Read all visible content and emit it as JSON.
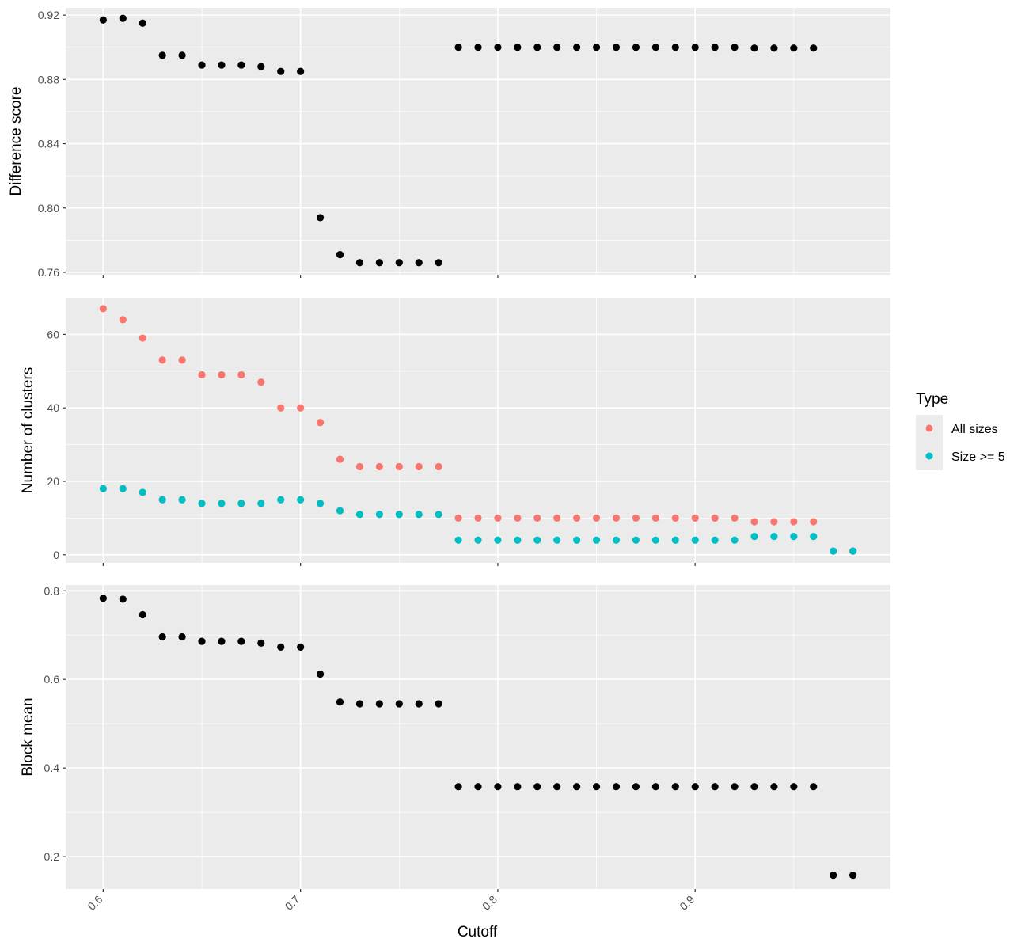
{
  "chart_data": [
    {
      "type": "scatter",
      "title": "",
      "ylabel": "Difference score",
      "xlim": [
        0.581,
        0.999
      ],
      "ylim": [
        0.7585,
        0.9245
      ],
      "yticks": [
        0.76,
        0.8,
        0.84,
        0.88,
        0.92
      ],
      "ytick_labels": [
        "0.76",
        "0.80",
        "0.84",
        "0.88",
        "0.92"
      ],
      "xticks": [
        0.6,
        0.7,
        0.8,
        0.9
      ],
      "grid": true,
      "series": [
        {
          "color": "#000000",
          "points": [
            [
              0.6,
              0.917
            ],
            [
              0.61,
              0.918
            ],
            [
              0.62,
              0.915
            ],
            [
              0.63,
              0.895
            ],
            [
              0.64,
              0.895
            ],
            [
              0.65,
              0.889
            ],
            [
              0.66,
              0.889
            ],
            [
              0.67,
              0.889
            ],
            [
              0.68,
              0.888
            ],
            [
              0.69,
              0.885
            ],
            [
              0.7,
              0.885
            ],
            [
              0.71,
              0.794
            ],
            [
              0.72,
              0.771
            ],
            [
              0.73,
              0.766
            ],
            [
              0.74,
              0.766
            ],
            [
              0.75,
              0.766
            ],
            [
              0.76,
              0.766
            ],
            [
              0.77,
              0.766
            ],
            [
              0.78,
              0.9
            ],
            [
              0.79,
              0.9
            ],
            [
              0.8,
              0.9
            ],
            [
              0.81,
              0.9
            ],
            [
              0.82,
              0.9
            ],
            [
              0.83,
              0.9
            ],
            [
              0.84,
              0.9
            ],
            [
              0.85,
              0.9
            ],
            [
              0.86,
              0.9
            ],
            [
              0.87,
              0.9
            ],
            [
              0.88,
              0.9
            ],
            [
              0.89,
              0.9
            ],
            [
              0.9,
              0.9
            ],
            [
              0.91,
              0.9
            ],
            [
              0.92,
              0.9
            ],
            [
              0.93,
              0.8995
            ],
            [
              0.94,
              0.8995
            ],
            [
              0.95,
              0.8995
            ],
            [
              0.96,
              0.8995
            ]
          ]
        }
      ]
    },
    {
      "type": "scatter",
      "title": "",
      "ylabel": "Number of clusters",
      "xlim": [
        0.581,
        0.999
      ],
      "ylim": [
        -2.2,
        70.0
      ],
      "yticks": [
        0,
        20,
        40,
        60
      ],
      "ytick_labels": [
        "0",
        "20",
        "40",
        "60"
      ],
      "xticks": [
        0.6,
        0.7,
        0.8,
        0.9
      ],
      "grid": true,
      "series": [
        {
          "name": "All sizes",
          "color": "#F8766D",
          "points": [
            [
              0.6,
              67
            ],
            [
              0.61,
              64
            ],
            [
              0.62,
              59
            ],
            [
              0.63,
              53
            ],
            [
              0.64,
              53
            ],
            [
              0.65,
              49
            ],
            [
              0.66,
              49
            ],
            [
              0.67,
              49
            ],
            [
              0.68,
              47
            ],
            [
              0.69,
              40
            ],
            [
              0.7,
              40
            ],
            [
              0.71,
              36
            ],
            [
              0.72,
              26
            ],
            [
              0.73,
              24
            ],
            [
              0.74,
              24
            ],
            [
              0.75,
              24
            ],
            [
              0.76,
              24
            ],
            [
              0.77,
              24
            ],
            [
              0.78,
              10
            ],
            [
              0.79,
              10
            ],
            [
              0.8,
              10
            ],
            [
              0.81,
              10
            ],
            [
              0.82,
              10
            ],
            [
              0.83,
              10
            ],
            [
              0.84,
              10
            ],
            [
              0.85,
              10
            ],
            [
              0.86,
              10
            ],
            [
              0.87,
              10
            ],
            [
              0.88,
              10
            ],
            [
              0.89,
              10
            ],
            [
              0.9,
              10
            ],
            [
              0.91,
              10
            ],
            [
              0.92,
              10
            ],
            [
              0.93,
              9
            ],
            [
              0.94,
              9
            ],
            [
              0.95,
              9
            ],
            [
              0.96,
              9
            ],
            [
              0.97,
              1
            ],
            [
              0.98,
              1
            ]
          ]
        },
        {
          "name": "Size >= 5",
          "color": "#00BFC4",
          "points": [
            [
              0.6,
              18
            ],
            [
              0.61,
              18
            ],
            [
              0.62,
              17
            ],
            [
              0.63,
              15
            ],
            [
              0.64,
              15
            ],
            [
              0.65,
              14
            ],
            [
              0.66,
              14
            ],
            [
              0.67,
              14
            ],
            [
              0.68,
              14
            ],
            [
              0.69,
              15
            ],
            [
              0.7,
              15
            ],
            [
              0.71,
              14
            ],
            [
              0.72,
              12
            ],
            [
              0.73,
              11
            ],
            [
              0.74,
              11
            ],
            [
              0.75,
              11
            ],
            [
              0.76,
              11
            ],
            [
              0.77,
              11
            ],
            [
              0.78,
              4
            ],
            [
              0.79,
              4
            ],
            [
              0.8,
              4
            ],
            [
              0.81,
              4
            ],
            [
              0.82,
              4
            ],
            [
              0.83,
              4
            ],
            [
              0.84,
              4
            ],
            [
              0.85,
              4
            ],
            [
              0.86,
              4
            ],
            [
              0.87,
              4
            ],
            [
              0.88,
              4
            ],
            [
              0.89,
              4
            ],
            [
              0.9,
              4
            ],
            [
              0.91,
              4
            ],
            [
              0.92,
              4
            ],
            [
              0.93,
              5
            ],
            [
              0.94,
              5
            ],
            [
              0.95,
              5
            ],
            [
              0.96,
              5
            ],
            [
              0.97,
              1
            ],
            [
              0.98,
              1
            ]
          ]
        }
      ]
    },
    {
      "type": "scatter",
      "title": "",
      "ylabel": "Block mean",
      "xlabel": "Cutoff",
      "xlim": [
        0.581,
        0.999
      ],
      "ylim": [
        0.127,
        0.813
      ],
      "yticks": [
        0.2,
        0.4,
        0.6,
        0.8
      ],
      "ytick_labels": [
        "0.2",
        "0.4",
        "0.6",
        "0.8"
      ],
      "xticks": [
        0.6,
        0.7,
        0.8,
        0.9
      ],
      "xtick_labels": [
        "0.6",
        "0.7",
        "0.8",
        "0.9"
      ],
      "grid": true,
      "series": [
        {
          "color": "#000000",
          "points": [
            [
              0.6,
              0.783
            ],
            [
              0.61,
              0.781
            ],
            [
              0.62,
              0.746
            ],
            [
              0.63,
              0.696
            ],
            [
              0.64,
              0.696
            ],
            [
              0.65,
              0.686
            ],
            [
              0.66,
              0.686
            ],
            [
              0.67,
              0.686
            ],
            [
              0.68,
              0.682
            ],
            [
              0.69,
              0.673
            ],
            [
              0.7,
              0.673
            ],
            [
              0.71,
              0.612
            ],
            [
              0.72,
              0.549
            ],
            [
              0.73,
              0.545
            ],
            [
              0.74,
              0.545
            ],
            [
              0.75,
              0.545
            ],
            [
              0.76,
              0.545
            ],
            [
              0.77,
              0.545
            ],
            [
              0.78,
              0.358
            ],
            [
              0.79,
              0.358
            ],
            [
              0.8,
              0.358
            ],
            [
              0.81,
              0.358
            ],
            [
              0.82,
              0.358
            ],
            [
              0.83,
              0.358
            ],
            [
              0.84,
              0.358
            ],
            [
              0.85,
              0.358
            ],
            [
              0.86,
              0.358
            ],
            [
              0.87,
              0.358
            ],
            [
              0.88,
              0.358
            ],
            [
              0.89,
              0.358
            ],
            [
              0.9,
              0.358
            ],
            [
              0.91,
              0.358
            ],
            [
              0.92,
              0.358
            ],
            [
              0.93,
              0.358
            ],
            [
              0.94,
              0.358
            ],
            [
              0.95,
              0.358
            ],
            [
              0.96,
              0.358
            ],
            [
              0.97,
              0.158
            ],
            [
              0.98,
              0.158
            ]
          ]
        }
      ]
    }
  ],
  "legend": {
    "title": "Type",
    "placement": "right",
    "items": [
      {
        "label": "All sizes",
        "color": "#F8766D"
      },
      {
        "label": "Size >= 5",
        "color": "#00BFC4"
      }
    ]
  },
  "colors": {
    "panel_background": "#EBEBEB",
    "grid_line": "#FFFFFF",
    "tick_color": "#333333",
    "tick_label_color": "#4D4D4D"
  }
}
